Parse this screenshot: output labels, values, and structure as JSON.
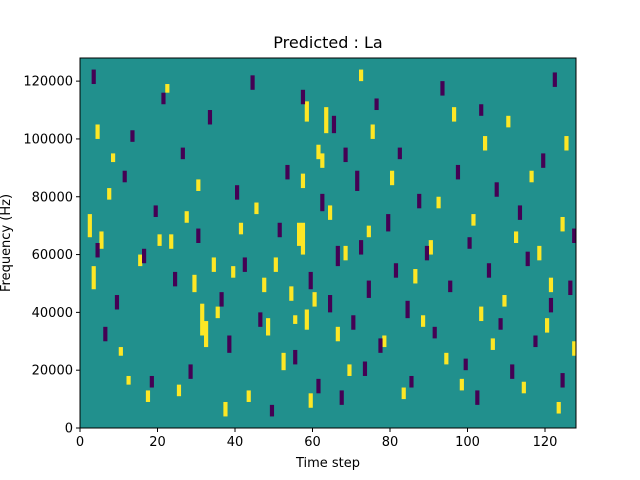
{
  "chart_data": {
    "type": "heatmap",
    "title": "Predicted : La",
    "xlabel": "Time step",
    "ylabel": "Frequency (Hz)",
    "xlim": [
      0,
      128
    ],
    "ylim": [
      0,
      128000
    ],
    "xticks": [
      0,
      20,
      40,
      60,
      80,
      100,
      120
    ],
    "yticks": [
      0,
      20000,
      40000,
      60000,
      80000,
      100000,
      120000
    ],
    "xtick_labels": [
      "0",
      "20",
      "40",
      "60",
      "80",
      "100",
      "120"
    ],
    "ytick_labels": [
      "0",
      "20000",
      "40000",
      "60000",
      "80000",
      "100000",
      "120000"
    ],
    "time_steps": 128,
    "freq_bins": 128,
    "bin_hz": 1000,
    "colors": {
      "background": "#21908d",
      "positive": "#fde725",
      "negative": "#440154"
    },
    "positive_cells": [
      [
        2,
        66,
        73
      ],
      [
        3,
        48,
        55
      ],
      [
        4,
        100,
        104
      ],
      [
        5,
        62,
        67
      ],
      [
        7,
        79,
        82
      ],
      [
        8,
        92,
        94
      ],
      [
        10,
        25,
        27
      ],
      [
        12,
        15,
        17
      ],
      [
        15,
        56,
        59
      ],
      [
        17,
        9,
        12
      ],
      [
        20,
        63,
        66
      ],
      [
        22,
        116,
        118
      ],
      [
        23,
        62,
        66
      ],
      [
        25,
        11,
        14
      ],
      [
        27,
        71,
        74
      ],
      [
        29,
        47,
        52
      ],
      [
        30,
        82,
        85
      ],
      [
        31,
        32,
        42
      ],
      [
        32,
        28,
        36
      ],
      [
        34,
        54,
        58
      ],
      [
        35,
        38,
        41
      ],
      [
        37,
        4,
        8
      ],
      [
        39,
        52,
        55
      ],
      [
        41,
        67,
        70
      ],
      [
        43,
        9,
        12
      ],
      [
        45,
        74,
        77
      ],
      [
        47,
        47,
        51
      ],
      [
        48,
        32,
        37
      ],
      [
        50,
        54,
        58
      ],
      [
        52,
        20,
        25
      ],
      [
        54,
        44,
        48
      ],
      [
        55,
        36,
        38
      ],
      [
        56,
        63,
        70
      ],
      [
        57,
        60,
        70
      ],
      [
        57,
        83,
        87
      ],
      [
        58,
        34,
        40
      ],
      [
        58,
        106,
        112
      ],
      [
        59,
        7,
        11
      ],
      [
        60,
        42,
        46
      ],
      [
        61,
        93,
        97
      ],
      [
        62,
        90,
        94
      ],
      [
        63,
        102,
        110
      ],
      [
        64,
        72,
        76
      ],
      [
        66,
        30,
        34
      ],
      [
        68,
        58,
        62
      ],
      [
        69,
        18,
        21
      ],
      [
        72,
        120,
        123
      ],
      [
        74,
        66,
        69
      ],
      [
        75,
        100,
        104
      ],
      [
        78,
        28,
        31
      ],
      [
        80,
        84,
        88
      ],
      [
        83,
        10,
        13
      ],
      [
        86,
        50,
        54
      ],
      [
        88,
        35,
        38
      ],
      [
        90,
        60,
        64
      ],
      [
        92,
        76,
        79
      ],
      [
        94,
        22,
        25
      ],
      [
        96,
        106,
        110
      ],
      [
        98,
        13,
        16
      ],
      [
        101,
        70,
        73
      ],
      [
        103,
        37,
        41
      ],
      [
        104,
        96,
        100
      ],
      [
        106,
        27,
        30
      ],
      [
        109,
        42,
        45
      ],
      [
        110,
        104,
        107
      ],
      [
        112,
        64,
        67
      ],
      [
        114,
        12,
        15
      ],
      [
        116,
        85,
        88
      ],
      [
        118,
        58,
        62
      ],
      [
        120,
        33,
        37
      ],
      [
        121,
        47,
        51
      ],
      [
        123,
        5,
        8
      ],
      [
        124,
        68,
        72
      ],
      [
        125,
        96,
        100
      ],
      [
        127,
        25,
        29
      ]
    ],
    "negative_cells": [
      [
        3,
        119,
        123
      ],
      [
        4,
        59,
        63
      ],
      [
        6,
        30,
        34
      ],
      [
        9,
        41,
        45
      ],
      [
        11,
        85,
        88
      ],
      [
        13,
        99,
        102
      ],
      [
        16,
        57,
        61
      ],
      [
        18,
        14,
        17
      ],
      [
        19,
        73,
        76
      ],
      [
        21,
        112,
        115
      ],
      [
        24,
        49,
        53
      ],
      [
        26,
        93,
        96
      ],
      [
        28,
        17,
        21
      ],
      [
        30,
        64,
        68
      ],
      [
        33,
        105,
        109
      ],
      [
        36,
        42,
        46
      ],
      [
        38,
        26,
        31
      ],
      [
        40,
        79,
        83
      ],
      [
        42,
        54,
        58
      ],
      [
        44,
        117,
        121
      ],
      [
        46,
        35,
        39
      ],
      [
        49,
        4,
        7
      ],
      [
        51,
        66,
        70
      ],
      [
        53,
        86,
        90
      ],
      [
        55,
        22,
        26
      ],
      [
        57,
        112,
        116
      ],
      [
        59,
        48,
        53
      ],
      [
        61,
        12,
        16
      ],
      [
        62,
        75,
        80
      ],
      [
        64,
        40,
        45
      ],
      [
        65,
        102,
        107
      ],
      [
        66,
        56,
        62
      ],
      [
        67,
        8,
        12
      ],
      [
        68,
        92,
        96
      ],
      [
        70,
        34,
        38
      ],
      [
        71,
        82,
        88
      ],
      [
        72,
        60,
        64
      ],
      [
        73,
        18,
        22
      ],
      [
        74,
        45,
        50
      ],
      [
        76,
        110,
        113
      ],
      [
        77,
        26,
        30
      ],
      [
        79,
        68,
        73
      ],
      [
        81,
        52,
        56
      ],
      [
        82,
        93,
        96
      ],
      [
        84,
        38,
        43
      ],
      [
        85,
        14,
        17
      ],
      [
        87,
        76,
        80
      ],
      [
        89,
        58,
        62
      ],
      [
        91,
        31,
        34
      ],
      [
        93,
        115,
        119
      ],
      [
        95,
        47,
        50
      ],
      [
        97,
        86,
        90
      ],
      [
        99,
        20,
        23
      ],
      [
        100,
        62,
        65
      ],
      [
        102,
        8,
        12
      ],
      [
        103,
        108,
        111
      ],
      [
        105,
        52,
        56
      ],
      [
        107,
        80,
        84
      ],
      [
        108,
        34,
        37
      ],
      [
        111,
        17,
        21
      ],
      [
        113,
        72,
        76
      ],
      [
        115,
        56,
        60
      ],
      [
        117,
        28,
        31
      ],
      [
        119,
        90,
        94
      ],
      [
        121,
        40,
        44
      ],
      [
        122,
        118,
        122
      ],
      [
        124,
        14,
        18
      ],
      [
        126,
        46,
        50
      ],
      [
        127,
        64,
        68
      ]
    ]
  }
}
